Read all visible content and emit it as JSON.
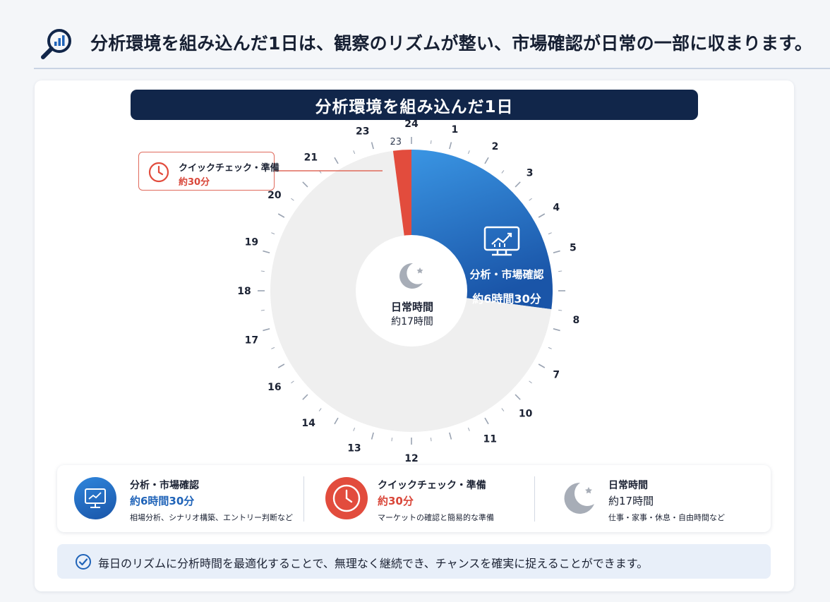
{
  "header": {
    "title": "分析環境を組み込んだ1日は、観察のリズムが整い、市場確認が日常の一部に収まります。",
    "icon": "analytics-magnifier-icon"
  },
  "banner": {
    "title": "分析環境を組み込んだ1日"
  },
  "chart_data": {
    "type": "pie",
    "style": "donut",
    "title": "分析環境を組み込んだ1日",
    "dial_labels": [
      "24",
      "1",
      "2",
      "3",
      "4",
      "5",
      "8",
      "7",
      "10",
      "11",
      "12",
      "13",
      "14",
      "16",
      "17",
      "18",
      "19",
      "20",
      "21",
      "23",
      "23"
    ],
    "series": [
      {
        "name": "分析・市場確認",
        "value_label": "約6時間30分",
        "hours": 6.5,
        "color": "#2a7fd4"
      },
      {
        "name": "日常時間",
        "value_label": "約17時間",
        "hours": 17,
        "color": "#efefef"
      },
      {
        "name": "クイックチェック・準備",
        "value_label": "約30分",
        "hours": 0.5,
        "color": "#e24c3d"
      }
    ]
  },
  "callout": {
    "label": "クイックチェック・準備",
    "value": "約30分",
    "icon": "clock-icon"
  },
  "center": {
    "title": "日常時間",
    "value": "約17時間",
    "icon": "moon-star-icon"
  },
  "segment_label": {
    "title": "分析・市場確認",
    "value": "約6時間30分",
    "icon": "monitor-chart-icon"
  },
  "legend": {
    "items": [
      {
        "title": "分析・市場確認",
        "value": "約6時間30分",
        "desc": "相場分析、シナリオ構築、エントリー判断など",
        "icon": "monitor-chart-icon",
        "color": "#1f63b8",
        "value_color": "#1f63b8"
      },
      {
        "title": "クイックチェック・準備",
        "value": "約30分",
        "desc": "マーケットの確認と簡易的な準備",
        "icon": "clock-icon",
        "color": "#e24c3d",
        "value_color": "#d9473a"
      },
      {
        "title": "日常時間",
        "value": "約17時間",
        "desc": "仕事・家事・休息・自由時間など",
        "icon": "moon-star-icon",
        "color": "#a7adb7",
        "value_color": "#1b2233"
      }
    ]
  },
  "footer": {
    "text": "毎日のリズムに分析時間を最適化することで、無理なく継続でき、チャンスを確実に捉えることができます。",
    "icon": "check-circle-icon"
  }
}
